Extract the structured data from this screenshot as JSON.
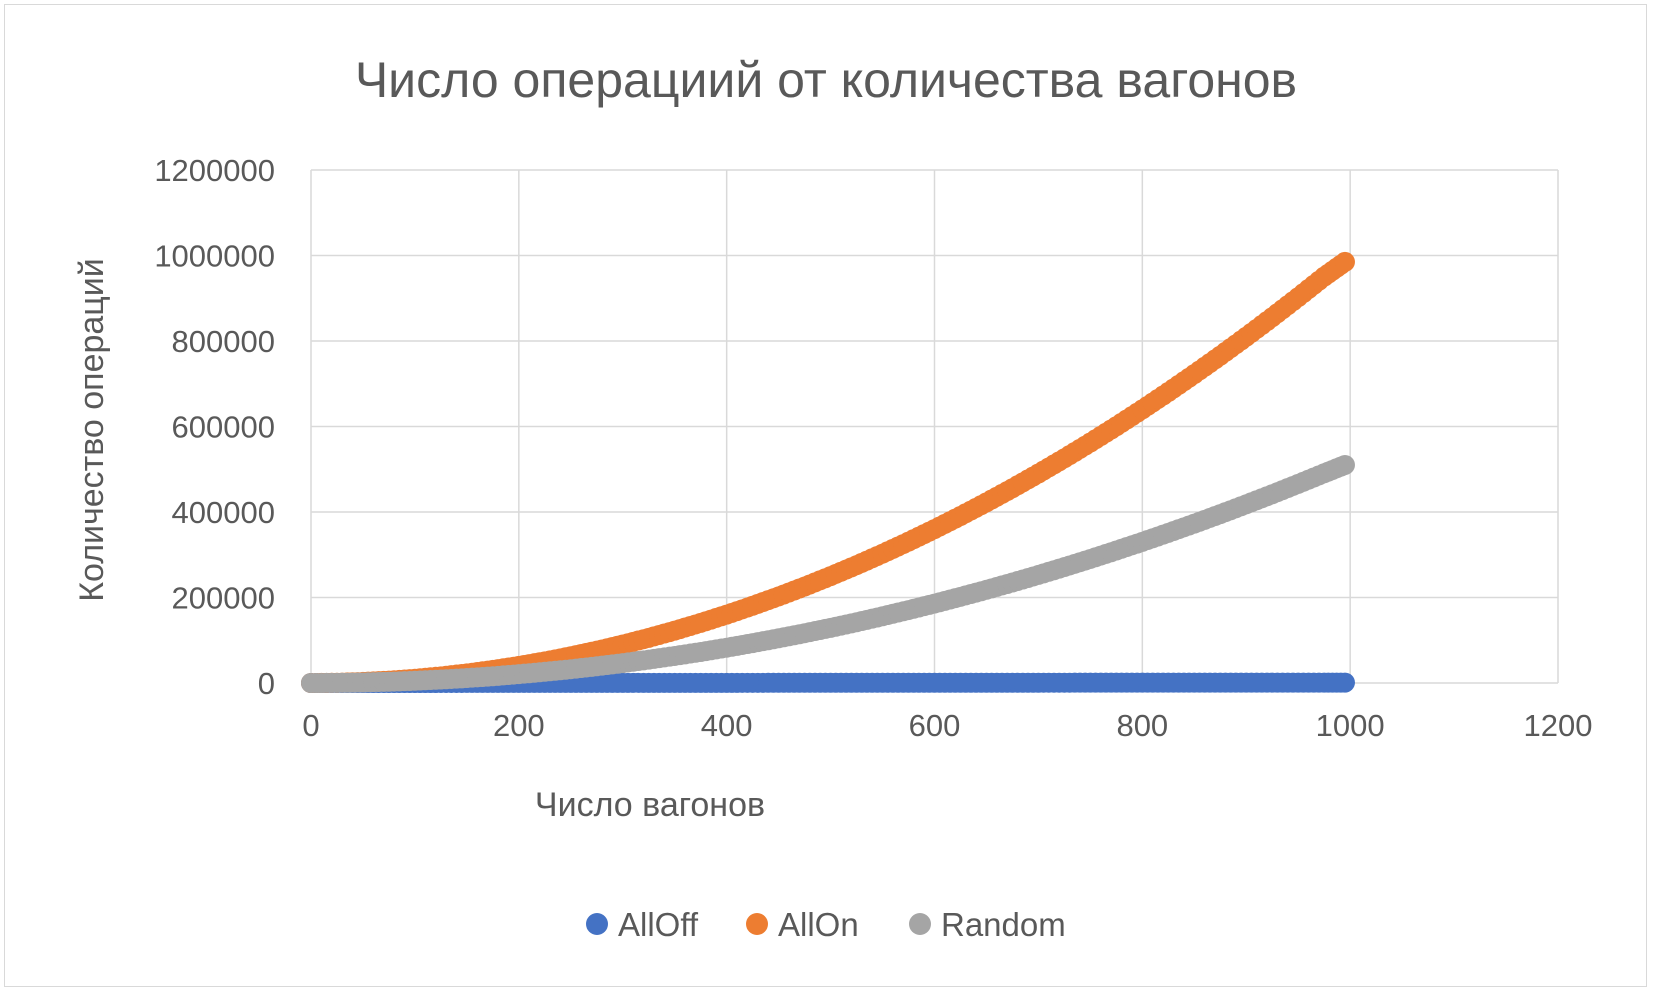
{
  "chart_data": {
    "type": "scatter",
    "title": "Число операциий от количества вагонов",
    "xlabel": "Число вагонов",
    "ylabel": "Количество операций",
    "xlim": [
      0,
      1200
    ],
    "ylim": [
      0,
      1200000
    ],
    "xticks": [
      "0",
      "200",
      "400",
      "600",
      "800",
      "1000",
      "1200"
    ],
    "yticks": [
      "0",
      "200000",
      "400000",
      "600000",
      "800000",
      "1000000",
      "1200000"
    ],
    "grid": true,
    "legend": "bottom",
    "x": [
      0,
      25,
      50,
      75,
      100,
      125,
      150,
      175,
      200,
      225,
      250,
      275,
      300,
      325,
      350,
      375,
      400,
      425,
      450,
      475,
      500,
      525,
      550,
      575,
      600,
      625,
      650,
      675,
      700,
      725,
      750,
      775,
      800,
      825,
      850,
      875,
      900,
      925,
      950,
      975,
      995
    ],
    "series": [
      {
        "name": "AllOff",
        "color": "#4472C4",
        "values": [
          0,
          25,
          50,
          75,
          100,
          125,
          150,
          175,
          200,
          225,
          250,
          275,
          300,
          325,
          350,
          375,
          400,
          425,
          450,
          475,
          500,
          525,
          550,
          575,
          600,
          625,
          650,
          675,
          700,
          725,
          750,
          775,
          800,
          825,
          850,
          875,
          900,
          925,
          950,
          975,
          995
        ]
      },
      {
        "name": "AllOn",
        "color": "#ED7D31",
        "values": [
          0,
          625,
          2500,
          5600,
          10000,
          15600,
          22500,
          30600,
          40000,
          50600,
          62500,
          75600,
          90000,
          105600,
          122500,
          140600,
          160000,
          180600,
          202500,
          225600,
          250000,
          275600,
          302500,
          330600,
          360000,
          390600,
          422500,
          455600,
          490000,
          525600,
          562500,
          600600,
          640000,
          680600,
          722500,
          765600,
          810000,
          855600,
          902500,
          950600,
          985000
        ]
      },
      {
        "name": "Random",
        "color": "#A5A5A5",
        "values": [
          0,
          300,
          1300,
          2900,
          5200,
          8100,
          11600,
          15800,
          20700,
          26200,
          32300,
          39100,
          46500,
          54600,
          63300,
          72600,
          82600,
          93300,
          104600,
          116500,
          129000,
          142200,
          156100,
          170600,
          185800,
          201600,
          218000,
          235100,
          252800,
          271200,
          290200,
          309900,
          330200,
          351200,
          372800,
          395000,
          418000,
          441500,
          465800,
          490600,
          510000
        ]
      }
    ]
  }
}
